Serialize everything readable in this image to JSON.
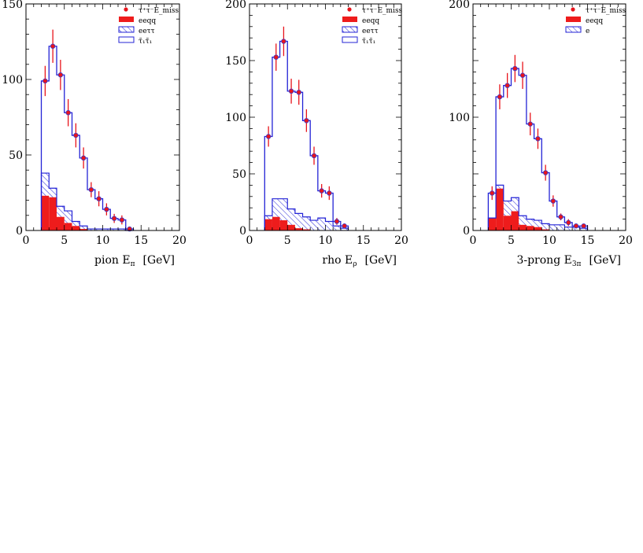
{
  "colors": {
    "axis": "#000000",
    "data_point": "#e8141b",
    "error_bar": "#e8141b",
    "data_point_outline": "#3a3acc",
    "blue_line": "#2323d6",
    "red_fill": "#ee1c1c",
    "hatch": "#2323d6"
  },
  "chart_data": [
    {
      "type": "histogram",
      "xlabel": "pion E",
      "xlabel_sub": "π",
      "xunit": "[GeV]",
      "xlim": [
        0,
        20
      ],
      "ylim": [
        0,
        150
      ],
      "xticks": [
        0,
        5,
        10,
        15,
        20
      ],
      "yticks": [
        0,
        50,
        100,
        150
      ],
      "bin_edges": [
        2,
        3,
        4,
        5,
        6,
        7,
        8,
        9,
        10,
        11,
        12,
        13,
        14
      ],
      "legend": [
        {
          "label": "τ⁺τ⁻E_miss",
          "style": "point"
        },
        {
          "label": "eeqq",
          "style": "red"
        },
        {
          "label": "eeττ",
          "style": "hatch"
        },
        {
          "label": "τ̃₁τ̃₁",
          "style": "open"
        }
      ],
      "series": [
        {
          "role": "total",
          "values": [
            99,
            122,
            103,
            78,
            63,
            48,
            27,
            21,
            14,
            8,
            7,
            1
          ]
        },
        {
          "role": "hatch_top",
          "values": [
            38,
            28,
            16,
            13,
            6,
            3,
            1,
            1,
            1,
            1,
            1,
            0
          ]
        },
        {
          "role": "red",
          "values": [
            23,
            22,
            9,
            5,
            3,
            1,
            0,
            0,
            0,
            0,
            0,
            0
          ]
        }
      ],
      "points": {
        "x": [
          2.5,
          3.5,
          4.5,
          5.5,
          6.5,
          7.5,
          8.5,
          9.5,
          10.5,
          11.5,
          12.5,
          13.5
        ],
        "y": [
          99,
          122,
          103,
          78,
          63,
          48,
          27,
          21,
          14,
          8,
          7,
          1
        ],
        "err": [
          10,
          11,
          10,
          9,
          8,
          7,
          5,
          5,
          4,
          3,
          3,
          1
        ]
      }
    },
    {
      "type": "histogram",
      "xlabel": "rho E",
      "xlabel_sub": "ρ",
      "xunit": "[GeV]",
      "xlim": [
        0,
        20
      ],
      "ylim": [
        0,
        200
      ],
      "xticks": [
        0,
        5,
        10,
        15,
        20
      ],
      "yticks": [
        0,
        50,
        100,
        150,
        200
      ],
      "bin_edges": [
        2,
        3,
        4,
        5,
        6,
        7,
        8,
        9,
        10,
        11,
        12,
        13
      ],
      "legend": [
        {
          "label": "τ⁺τ⁻E_miss",
          "style": "point"
        },
        {
          "label": "eeqq",
          "style": "red"
        },
        {
          "label": "eeττ",
          "style": "hatch"
        },
        {
          "label": "τ̃₁τ̃₁",
          "style": "open"
        }
      ],
      "series": [
        {
          "role": "total",
          "values": [
            83,
            153,
            167,
            123,
            122,
            97,
            66,
            35,
            33,
            8,
            4
          ]
        },
        {
          "role": "hatch_top",
          "values": [
            13,
            28,
            28,
            19,
            15,
            12,
            9,
            11,
            8,
            4,
            2
          ]
        },
        {
          "role": "red",
          "values": [
            10,
            12,
            9,
            5,
            2,
            1,
            0,
            0,
            0,
            0,
            0
          ]
        }
      ],
      "points": {
        "x": [
          2.5,
          3.5,
          4.5,
          5.5,
          6.5,
          7.5,
          8.5,
          9.5,
          10.5,
          11.5,
          12.5
        ],
        "y": [
          83,
          153,
          167,
          123,
          122,
          97,
          66,
          35,
          33,
          8,
          4
        ],
        "err": [
          9,
          12,
          13,
          11,
          11,
          10,
          8,
          6,
          6,
          3,
          2
        ]
      }
    },
    {
      "type": "histogram",
      "xlabel": "3-prong E",
      "xlabel_sub": "3π",
      "xunit": "[GeV]",
      "xlim": [
        0,
        20
      ],
      "ylim": [
        0,
        200
      ],
      "xticks": [
        0,
        5,
        10,
        15,
        20
      ],
      "yticks": [
        0,
        100,
        200
      ],
      "bin_edges": [
        2,
        3,
        4,
        5,
        6,
        7,
        8,
        9,
        10,
        11,
        12,
        13,
        14,
        15
      ],
      "legend": [
        {
          "label": "τ⁺τ⁻E_miss",
          "style": "point"
        },
        {
          "label": "eeqq",
          "style": "red"
        },
        {
          "label": "e",
          "style": "hatch"
        }
      ],
      "series": [
        {
          "role": "total",
          "values": [
            33,
            118,
            128,
            143,
            137,
            94,
            81,
            51,
            26,
            12,
            7,
            4,
            4
          ]
        },
        {
          "role": "hatch_top",
          "values": [
            11,
            40,
            26,
            29,
            13,
            10,
            9,
            6,
            5,
            5,
            3,
            3,
            2
          ]
        },
        {
          "role": "red",
          "values": [
            11,
            37,
            13,
            17,
            5,
            4,
            3,
            1,
            0,
            0,
            0,
            0,
            0
          ]
        }
      ],
      "points": {
        "x": [
          2.5,
          3.5,
          4.5,
          5.5,
          6.5,
          7.5,
          8.5,
          9.5,
          10.5,
          11.5,
          12.5,
          13.5,
          14.5
        ],
        "y": [
          33,
          118,
          128,
          143,
          137,
          94,
          81,
          51,
          26,
          12,
          7,
          4,
          4
        ],
        "err": [
          6,
          11,
          11,
          12,
          12,
          10,
          9,
          7,
          5,
          3,
          3,
          2,
          2
        ]
      }
    }
  ]
}
